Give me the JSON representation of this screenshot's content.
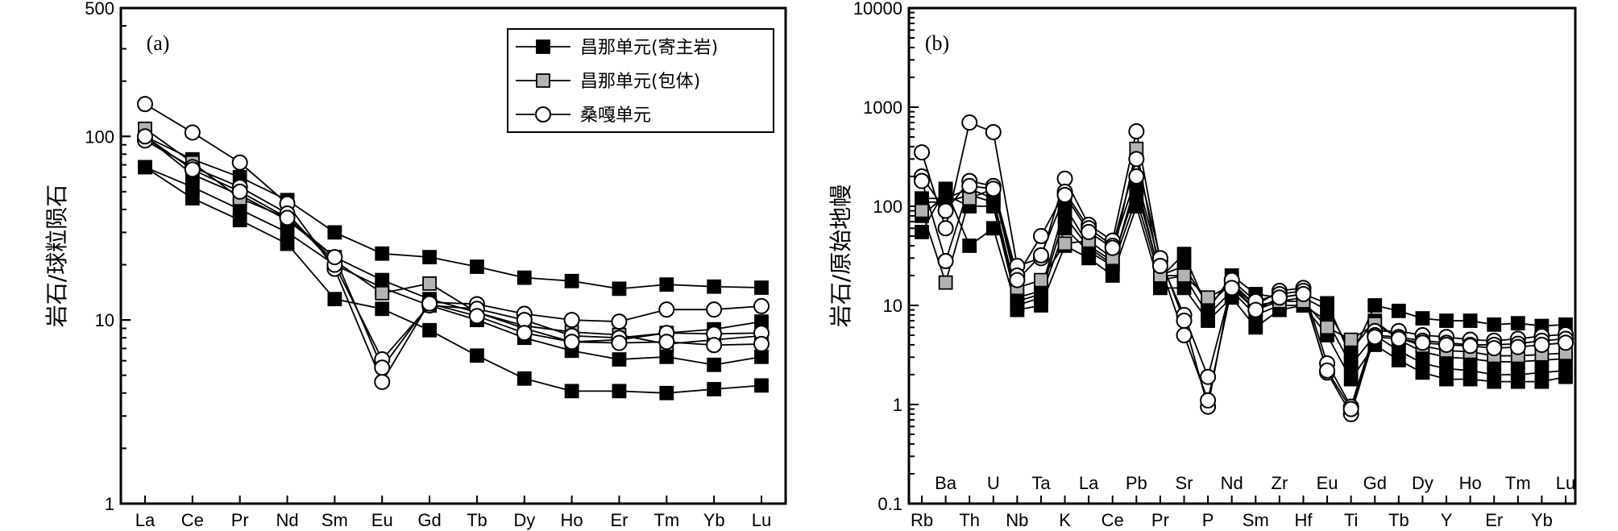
{
  "chart_data": [
    {
      "type": "line",
      "panel_label": "(a)",
      "ylabel": "岩石/球粒陨石",
      "yscale": "log",
      "ylim": [
        1,
        500
      ],
      "yticks": [
        "1",
        "10",
        "100",
        "500"
      ],
      "categories": [
        "La",
        "Ce",
        "Pr",
        "Nd",
        "Sm",
        "Eu",
        "Gd",
        "Tb",
        "Dy",
        "Ho",
        "Er",
        "Tm",
        "Yb",
        "Lu"
      ],
      "legend_position": "top-right",
      "legend": [
        {
          "label": "昌那单元(寄主岩)",
          "marker": "filled-square"
        },
        {
          "label": "昌那单元(包体)",
          "marker": "gray-square"
        },
        {
          "label": "桑嘎单元",
          "marker": "open-circle"
        }
      ],
      "series": [
        {
          "marker": "filled-square",
          "values": [
            68,
            46,
            35,
            26,
            13,
            11.5,
            8.8,
            6.4,
            4.8,
            4.1,
            4.1,
            4.0,
            4.2,
            4.4
          ]
        },
        {
          "marker": "filled-square",
          "values": [
            68,
            53,
            40,
            30,
            20,
            15,
            12,
            10,
            8,
            6.8,
            6.1,
            6.3,
            5.7,
            6.3
          ]
        },
        {
          "marker": "filled-square",
          "values": [
            100,
            75,
            60,
            45,
            30,
            23,
            22,
            19.5,
            17,
            16.3,
            14.8,
            15.6,
            15.2,
            15
          ]
        },
        {
          "marker": "filled-square",
          "values": [
            100,
            62,
            48,
            35,
            22,
            16.5,
            13,
            11,
            9,
            7.6,
            7.8,
            8.5,
            8.9,
            9.8
          ]
        },
        {
          "marker": "gray-square",
          "values": [
            110,
            72,
            46,
            36,
            21,
            14,
            15.8,
            11,
            9.3,
            8.6,
            8.3,
            7.4,
            7.8,
            8.2
          ]
        },
        {
          "marker": "open-circle",
          "values": [
            150,
            105,
            72,
            43,
            19,
            4.6,
            12.5,
            12.2,
            10.8,
            10,
            9.8,
            11.4,
            11.4,
            11.9
          ]
        },
        {
          "marker": "open-circle",
          "values": [
            95,
            68,
            53,
            38,
            20,
            6.1,
            12,
            11.5,
            10,
            8.2,
            8,
            8.5,
            8.4,
            8.5
          ]
        },
        {
          "marker": "open-circle",
          "values": [
            100,
            66,
            50,
            36,
            22,
            5.5,
            12.3,
            10.5,
            8.5,
            7.6,
            7.5,
            7.6,
            7.3,
            7.4
          ]
        }
      ]
    },
    {
      "type": "line",
      "panel_label": "(b)",
      "ylabel": "岩石/原始地幔",
      "yscale": "log",
      "ylim": [
        0.1,
        10000
      ],
      "yticks": [
        "0.1",
        "1",
        "10",
        "100",
        "1000",
        "10000"
      ],
      "categories": [
        "Rb",
        "Ba",
        "Th",
        "U",
        "Nb",
        "Ta",
        "K",
        "La",
        "Ce",
        "Pb",
        "Pr",
        "Sr",
        "P",
        "Nd",
        "Sm",
        "Zr",
        "Hf",
        "Eu",
        "Ti",
        "Gd",
        "Tb",
        "Dy",
        "Y",
        "Ho",
        "Er",
        "Tm",
        "Yb",
        "Lu"
      ],
      "series": [
        {
          "marker": "filled-square",
          "values": [
            55,
            150,
            40,
            60,
            9,
            10,
            40,
            30,
            20,
            100,
            15,
            15,
            7,
            12,
            6,
            9,
            10,
            5,
            1.8,
            4,
            2.8,
            2.1,
            1.8,
            1.8,
            1.7,
            1.7,
            1.7,
            1.9
          ]
        },
        {
          "marker": "filled-square",
          "values": [
            80,
            130,
            100,
            100,
            10,
            12,
            60,
            35,
            25,
            120,
            18,
            20,
            8,
            14,
            8,
            10,
            10,
            7,
            2.5,
            5,
            3.5,
            2.6,
            2.3,
            2.2,
            2.0,
            2.0,
            2.1,
            2.2
          ]
        },
        {
          "marker": "filled-square",
          "values": [
            120,
            120,
            150,
            120,
            12,
            14,
            100,
            40,
            28,
            150,
            20,
            25,
            10,
            17,
            10,
            11,
            12,
            9,
            3.5,
            7,
            4.5,
            3.4,
            3.0,
            2.9,
            2.7,
            2.7,
            2.8,
            2.9
          ]
        },
        {
          "marker": "filled-square",
          "values": [
            110,
            110,
            130,
            110,
            11,
            13,
            80,
            38,
            26,
            180,
            19,
            33,
            9,
            20,
            13,
            12,
            13,
            10.5,
            3,
            10,
            8.8,
            7.4,
            7,
            7,
            6.4,
            6.6,
            6.2,
            6.4
          ]
        },
        {
          "marker": "gray-square",
          "values": [
            90,
            17,
            120,
            150,
            15,
            18,
            42,
            45,
            30,
            380,
            20,
            20,
            12,
            16,
            9,
            11,
            11,
            6,
            4.5,
            6.5,
            4.7,
            3.9,
            3.5,
            3.4,
            3.1,
            3.1,
            3.2,
            3.3
          ]
        },
        {
          "marker": "open-circle",
          "values": [
            350,
            60,
            700,
            560,
            25,
            30,
            190,
            65,
            45,
            570,
            28,
            8,
            1.9,
            16,
            10,
            14,
            15,
            2.6,
            0.95,
            5.5,
            5.5,
            5,
            4.8,
            4.5,
            4.4,
            4.6,
            4.9,
            5.1
          ]
        },
        {
          "marker": "open-circle",
          "values": [
            200,
            90,
            180,
            160,
            20,
            50,
            140,
            60,
            40,
            300,
            30,
            7,
            0.95,
            18,
            11,
            13,
            14,
            2.1,
            0.8,
            5,
            4.8,
            4.4,
            4.2,
            4,
            4,
            4.1,
            4.4,
            4.6
          ]
        },
        {
          "marker": "open-circle",
          "values": [
            180,
            28,
            160,
            150,
            18,
            32,
            130,
            55,
            38,
            200,
            25,
            5,
            1.1,
            15,
            9,
            12,
            13,
            2.2,
            0.9,
            4.8,
            4.6,
            4.2,
            4,
            3.9,
            3.7,
            3.8,
            4,
            4.2
          ]
        }
      ]
    }
  ]
}
